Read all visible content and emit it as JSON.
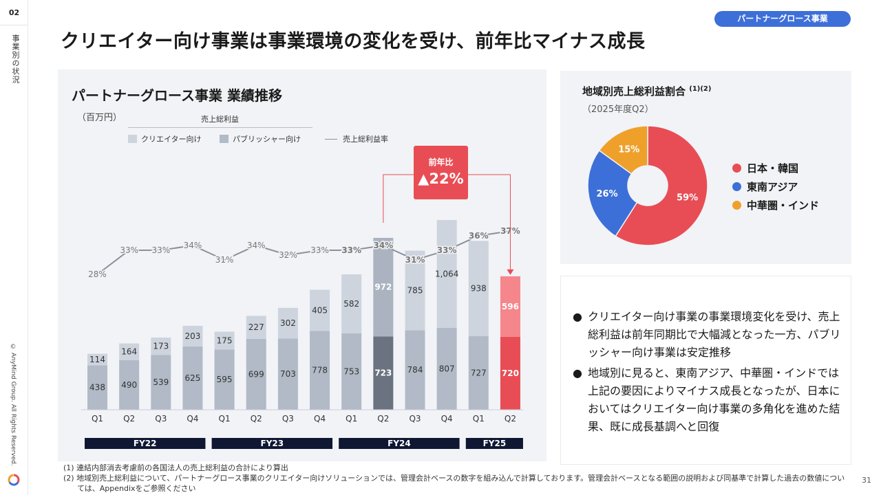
{
  "page": {
    "number": "02",
    "section": "事業別の状況",
    "copyright": "© AnyMind Group. All Rights Reserved.",
    "badge": "パートナーグロース事業",
    "title": "クリエイター向け事業は事業環境の変化を受け、前年比マイナス成長",
    "slide_number": "31"
  },
  "colors": {
    "creator": "#cdd4de",
    "publisher": "#b1bac6",
    "highlight_creator_fy24": "#aab3bf",
    "highlight_publisher_fy24": "#6b7380",
    "highlight_creator_fy25": "#f4868c",
    "highlight_publisher_fy25": "#e84d55",
    "ratio_line": "#8a909a",
    "accent_red": "#e84d55",
    "fy_bar": "#0f1733",
    "badge": "#3d6fd8"
  },
  "chart_data": [
    {
      "type": "bar",
      "stacked": true,
      "title": "パートナーグロース事業 業績推移",
      "unit": "（百万円）",
      "legend_header": "売上総利益",
      "categories": [
        "Q1",
        "Q2",
        "Q3",
        "Q4",
        "Q1",
        "Q2",
        "Q3",
        "Q4",
        "Q1",
        "Q2",
        "Q3",
        "Q4",
        "Q1",
        "Q2"
      ],
      "fiscal_years": [
        {
          "label": "FY22",
          "quarters": 4
        },
        {
          "label": "FY23",
          "quarters": 4
        },
        {
          "label": "FY24",
          "quarters": 4
        },
        {
          "label": "FY25",
          "quarters": 2
        }
      ],
      "series": [
        {
          "name": "パブリッシャー向け",
          "values": [
            438,
            490,
            539,
            625,
            595,
            699,
            703,
            778,
            753,
            723,
            784,
            807,
            727,
            720
          ]
        },
        {
          "name": "クリエイター向け",
          "values": [
            114,
            164,
            173,
            203,
            175,
            227,
            302,
            405,
            582,
            972,
            785,
            1064,
            938,
            596
          ]
        }
      ],
      "line_series": {
        "name": "売上総利益率",
        "values": [
          28,
          33,
          33,
          34,
          31,
          34,
          32,
          33,
          33,
          34,
          31,
          33,
          36,
          37
        ],
        "labels": [
          "28%",
          "33%",
          "33%",
          "34%",
          "31%",
          "34%",
          "32%",
          "33%",
          "33%",
          "34%",
          "31%",
          "33%",
          "36%",
          "37%"
        ]
      },
      "legend": [
        "クリエイター向け",
        "パブリッシャー向け",
        "売上総利益率"
      ],
      "callout": {
        "label": "前年比",
        "value": "▲22%"
      }
    },
    {
      "type": "pie",
      "donut": true,
      "title": "地域別売上総利益割合",
      "title_note": "(1)(2)",
      "subtitle": "（2025年度Q2）",
      "slices": [
        {
          "name": "日本・韓国",
          "value": 59,
          "label": "59%",
          "color": "#e84d55"
        },
        {
          "name": "東南アジア",
          "value": 26,
          "label": "26%",
          "color": "#3d6fd8"
        },
        {
          "name": "中華圏・インド",
          "value": 15,
          "label": "15%",
          "color": "#efa02b"
        }
      ]
    }
  ],
  "bullets": [
    {
      "marker": "●",
      "text": "クリエイター向け事業の事業環境変化を受け、売上総利益は前年同期比で大幅減となった一方、パブリッシャー向け事業は安定推移"
    },
    {
      "marker": "●",
      "text": "地域別に見ると、東南アジア、中華圏・インドでは上記の要因によりマイナス成長となったが、日本においてはクリエイター向け事業の多角化を進めた結果、既に成長基調へと回復"
    }
  ],
  "notes": [
    "(1) 連結内部消去考慮前の各国法人の売上総利益の合計により算出",
    "(2) 地域別売上総利益について、パートナーグロース事業のクリエイター向けソリューションでは、管理会計ベースの数字を組み込んで計算しております。管理会計ベースとなる範囲の説明および同基準で計算した過去の数値については、Appendixをご参照ください"
  ]
}
